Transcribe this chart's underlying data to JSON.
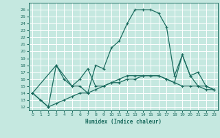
{
  "title": "",
  "xlabel": "Humidex (Indice chaleur)",
  "background_color": "#c5e8e0",
  "grid_color": "#ffffff",
  "line_color": "#1a6b5e",
  "xlim": [
    -0.5,
    23.5
  ],
  "ylim": [
    11.5,
    27
  ],
  "yticks": [
    12,
    13,
    14,
    15,
    16,
    17,
    18,
    19,
    20,
    21,
    22,
    23,
    24,
    25,
    26
  ],
  "xticks": [
    0,
    1,
    2,
    3,
    4,
    5,
    6,
    7,
    8,
    9,
    10,
    11,
    12,
    13,
    14,
    15,
    16,
    17,
    18,
    19,
    20,
    21,
    22,
    23
  ],
  "line1_x": [
    0,
    1,
    2,
    3,
    4,
    5,
    6,
    7,
    8,
    9,
    10,
    11,
    12,
    13,
    14,
    15,
    16,
    17,
    18,
    19,
    20,
    21,
    22,
    23
  ],
  "line1_y": [
    14.0,
    13.0,
    12.0,
    18.0,
    16.0,
    15.0,
    15.0,
    14.0,
    18.0,
    17.5,
    20.5,
    21.5,
    24.0,
    26.0,
    26.0,
    26.0,
    25.5,
    23.5,
    16.5,
    19.5,
    16.5,
    15.0,
    14.5,
    14.5
  ],
  "line2_x": [
    0,
    3,
    5,
    6,
    7,
    8,
    9,
    10,
    11,
    12,
    13,
    14,
    15,
    16,
    17,
    18,
    19,
    20,
    21,
    22,
    23
  ],
  "line2_y": [
    14.0,
    18.0,
    15.0,
    16.0,
    17.5,
    15.0,
    15.0,
    15.5,
    16.0,
    16.5,
    16.5,
    16.5,
    16.5,
    16.5,
    16.0,
    15.5,
    15.0,
    15.0,
    15.0,
    15.0,
    14.5
  ],
  "line3_x": [
    0,
    1,
    2,
    3,
    4,
    5,
    6,
    7,
    8,
    9,
    10,
    11,
    12,
    13,
    14,
    15,
    16,
    17,
    18,
    19,
    20,
    21,
    22,
    23
  ],
  "line3_y": [
    14.0,
    13.0,
    12.0,
    12.5,
    13.0,
    13.5,
    14.0,
    14.0,
    14.5,
    15.0,
    15.5,
    15.5,
    16.0,
    16.0,
    16.5,
    16.5,
    16.5,
    16.0,
    15.5,
    19.5,
    16.5,
    17.0,
    15.0,
    14.5
  ]
}
